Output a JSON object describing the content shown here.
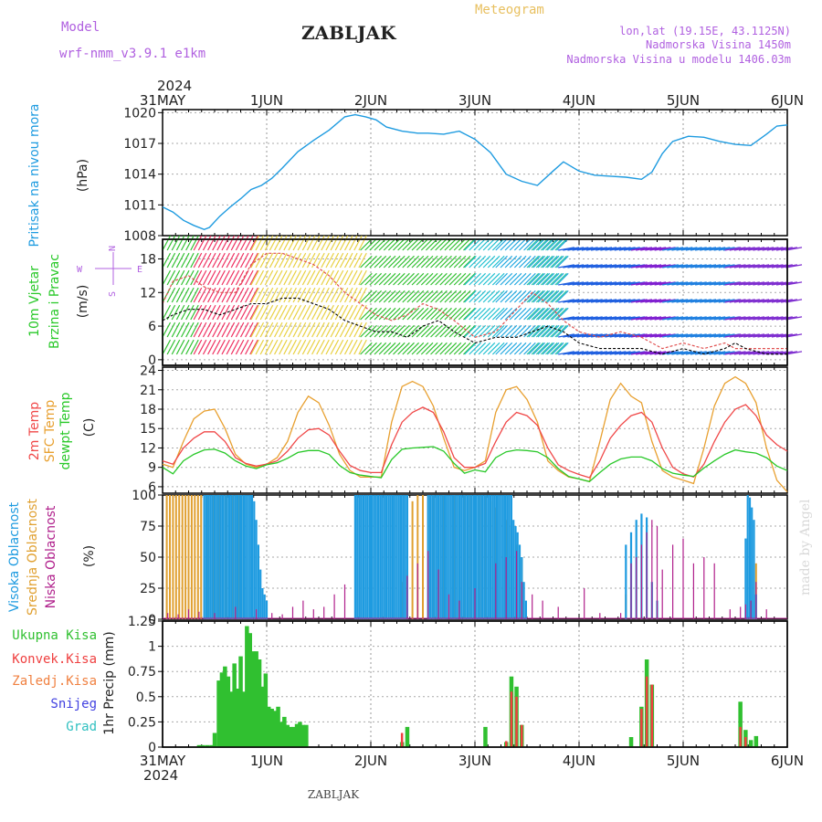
{
  "header": {
    "model_label": "Model",
    "model_name": "wrf-nmm_v3.9.1  e1km",
    "station": "ZABLJAK",
    "meteogram": "Meteogram",
    "lonlat": "lon,lat (19.15E, 43.1125N)",
    "altitude": "Nadmorska Visina 1450m",
    "model_altitude": "Nadmorska Visina u modelu 1406.03m",
    "credit": "made by Angel",
    "footer_station": "ZABLJAK"
  },
  "colors": {
    "pressure": "#1e9be0",
    "temp2m": "#f04848",
    "sfc": "#e8a030",
    "dewpt": "#28c828",
    "high_cloud": "#1e9be0",
    "mid_cloud": "#e0a030",
    "low_cloud": "#b0208c",
    "total_precip": "#30c030",
    "convective": "#ef4040",
    "frozen": "#f08040",
    "snow": "#4040e0",
    "graupel": "#30c0c0"
  },
  "time_axis": {
    "year": "2024",
    "labels": [
      "31MAY",
      "1JUN",
      "2JUN",
      "3JUN",
      "4JUN",
      "5JUN",
      "6JUN"
    ]
  },
  "chart_data": [
    {
      "type": "line",
      "panel": "pressure",
      "ylabel_title": "Pritisak na nivou mora",
      "ylabel_unit": "(hPa)",
      "yticks": [
        "1008",
        "1011",
        "1014",
        "1017",
        "1020"
      ],
      "ylim": [
        1008,
        1020.3
      ],
      "x_days": [
        0,
        0.1,
        0.2,
        0.3,
        0.4,
        0.45,
        0.55,
        0.65,
        0.75,
        0.85,
        0.95,
        1.05,
        1.15,
        1.3,
        1.45,
        1.6,
        1.75,
        1.85,
        1.95,
        2.05,
        2.15,
        2.3,
        2.45,
        2.55,
        2.7,
        2.85,
        3.0,
        3.15,
        3.3,
        3.45,
        3.6,
        3.75,
        3.85,
        4.0,
        4.15,
        4.3,
        4.45,
        4.6,
        4.7,
        4.8,
        4.9,
        5.05,
        5.2,
        5.35,
        5.5,
        5.65,
        5.8,
        5.9,
        6.0
      ],
      "values": [
        1010.8,
        1010.3,
        1009.5,
        1009.0,
        1008.6,
        1008.8,
        1009.9,
        1010.8,
        1011.6,
        1012.5,
        1012.9,
        1013.6,
        1014.6,
        1016.2,
        1017.3,
        1018.3,
        1019.6,
        1019.8,
        1019.6,
        1019.3,
        1018.6,
        1018.2,
        1018.0,
        1018.0,
        1017.9,
        1018.2,
        1017.4,
        1016.1,
        1014.0,
        1013.3,
        1012.9,
        1014.3,
        1015.2,
        1014.3,
        1013.9,
        1013.8,
        1013.7,
        1013.5,
        1014.2,
        1016.0,
        1017.2,
        1017.7,
        1017.6,
        1017.2,
        1016.9,
        1016.8,
        1017.9,
        1018.7,
        1018.8
      ]
    },
    {
      "type": "line",
      "panel": "wind",
      "ylabel_title": "10m Vjetar",
      "ylabel_title2": "Brzina i Pravac",
      "ylabel_unit": "(m/s)",
      "compass_n": "N",
      "compass_s": "S",
      "compass_w": "W",
      "compass_e": "E",
      "yticks": [
        "0",
        "6",
        "12",
        "18"
      ],
      "ylim": [
        -1,
        21.5
      ],
      "x_days": [
        0,
        0.1,
        0.25,
        0.4,
        0.55,
        0.7,
        0.85,
        1.0,
        1.15,
        1.3,
        1.45,
        1.6,
        1.75,
        1.9,
        2.05,
        2.2,
        2.35,
        2.5,
        2.65,
        2.8,
        3.0,
        3.2,
        3.4,
        3.55,
        3.7,
        3.85,
        4.0,
        4.2,
        4.4,
        4.6,
        4.8,
        5.0,
        5.2,
        5.4,
        5.5,
        5.6,
        5.8,
        6.0
      ],
      "speed": [
        7,
        8,
        9,
        9,
        8,
        9,
        10,
        10,
        11,
        11,
        10,
        9,
        7,
        6,
        5,
        5,
        4,
        6,
        7,
        5,
        3,
        4,
        4,
        5,
        6,
        5,
        3,
        2,
        2,
        2,
        1,
        2,
        1,
        2,
        3,
        2,
        1,
        1
      ],
      "gust": [
        10,
        14,
        15,
        13,
        12,
        12,
        17,
        19,
        19,
        18,
        17,
        15,
        12,
        10,
        8,
        7,
        8,
        10,
        9,
        7,
        4,
        5,
        9,
        12,
        10,
        7,
        5,
        4,
        5,
        4,
        2,
        3,
        2,
        3,
        2,
        2,
        2,
        2
      ]
    },
    {
      "type": "line",
      "panel": "temperature",
      "ylabel_lines": [
        "2m Temp",
        "SFC Temp",
        "dewpt Temp"
      ],
      "ylabel_unit": "(C)",
      "yticks": [
        "6",
        "9",
        "12",
        "15",
        "18",
        "21",
        "24"
      ],
      "ylim": [
        5,
        24.5
      ],
      "x_days": [
        0,
        0.1,
        0.2,
        0.3,
        0.4,
        0.5,
        0.6,
        0.7,
        0.8,
        0.9,
        1.0,
        1.1,
        1.2,
        1.3,
        1.4,
        1.5,
        1.6,
        1.7,
        1.8,
        1.9,
        2.0,
        2.1,
        2.2,
        2.3,
        2.4,
        2.5,
        2.6,
        2.7,
        2.8,
        2.9,
        3.0,
        3.1,
        3.2,
        3.3,
        3.4,
        3.5,
        3.6,
        3.7,
        3.8,
        3.9,
        4.0,
        4.1,
        4.2,
        4.3,
        4.4,
        4.5,
        4.6,
        4.7,
        4.8,
        4.9,
        5.0,
        5.1,
        5.2,
        5.3,
        5.4,
        5.5,
        5.6,
        5.7,
        5.8,
        5.9,
        6.0
      ],
      "t2m": [
        10,
        9.5,
        12,
        13.5,
        14.5,
        14.5,
        13,
        10.5,
        9.6,
        9.2,
        9.5,
        10,
        11.5,
        13.5,
        14.8,
        15,
        14,
        11.5,
        9.3,
        8.5,
        8.2,
        8.2,
        12.5,
        16,
        17.5,
        18.3,
        17.5,
        14.5,
        10.5,
        9,
        9,
        9.6,
        13,
        16,
        17.5,
        17,
        15.5,
        12,
        9.4,
        8.5,
        7.9,
        7.4,
        10,
        13.5,
        15.5,
        17,
        17.5,
        16,
        12,
        9,
        8,
        7.5,
        9.5,
        13,
        16,
        18,
        18.7,
        17,
        14,
        12.5,
        11.5
      ],
      "sfc": [
        9.5,
        9,
        13,
        16.5,
        17.7,
        18,
        15,
        11,
        9.5,
        9,
        9.5,
        10.5,
        13,
        17.5,
        20,
        19,
        15.5,
        11,
        8.5,
        7.5,
        7.5,
        7.5,
        16,
        21.5,
        22.3,
        21.5,
        18.5,
        13.5,
        9,
        8.5,
        9,
        10,
        17.5,
        21,
        21.5,
        19.5,
        16,
        10,
        8.5,
        7.5,
        7.2,
        6.8,
        13,
        19.5,
        22,
        20,
        19,
        13,
        8.5,
        7.5,
        7,
        6.5,
        12,
        18.5,
        22,
        23,
        22,
        19,
        12,
        7,
        5.2
      ],
      "dewpt": [
        9,
        8,
        10,
        11,
        11.7,
        11.8,
        11.2,
        10,
        9.2,
        8.8,
        9.4,
        9.7,
        10.4,
        11.3,
        11.6,
        11.6,
        11,
        9.3,
        8.2,
        7.8,
        7.6,
        7.4,
        10.2,
        11.8,
        12,
        12.1,
        12.2,
        11.5,
        9.6,
        8.1,
        8.6,
        8.3,
        10.5,
        11.4,
        11.7,
        11.6,
        11.4,
        10.5,
        8.8,
        7.6,
        7.2,
        6.8,
        8.2,
        9.5,
        10.3,
        10.6,
        10.6,
        10,
        8.8,
        8.1,
        7.8,
        7.6,
        8.9,
        10,
        11,
        11.7,
        11.4,
        11.2,
        10.5,
        9.2,
        8.5
      ]
    },
    {
      "type": "bar",
      "panel": "clouds",
      "ylabel_lines": [
        "Visoka Oblacnost",
        "Srednja Oblacnost",
        "Niska Oblacnost"
      ],
      "ylabel_unit": "(%)",
      "yticks": [
        "0",
        "25",
        "50",
        "75",
        "100"
      ],
      "ylim": [
        0,
        100
      ],
      "series": [
        {
          "key": "mid",
          "color_key": "mid_cloud",
          "x_days": [
            0.04,
            0.07,
            0.1,
            0.13,
            0.16,
            0.19,
            0.22,
            0.25,
            0.28,
            0.31,
            0.34,
            0.37,
            0.4,
            0.43,
            0.46,
            0.49,
            0.52,
            0.55,
            0.58,
            0.61,
            0.64,
            0.67,
            0.7,
            0.73,
            0.76,
            2.3,
            2.35,
            2.4,
            2.45,
            2.5,
            2.55,
            2.6,
            2.65,
            2.7,
            2.75,
            2.8,
            2.85,
            2.9,
            2.95,
            3.0,
            3.05,
            3.1,
            3.15,
            3.2,
            3.25,
            3.3,
            3.35,
            3.4,
            3.45,
            4.45,
            4.5,
            5.7
          ],
          "values": [
            100,
            100,
            100,
            100,
            100,
            100,
            100,
            100,
            100,
            100,
            100,
            100,
            100,
            100,
            100,
            100,
            100,
            100,
            100,
            100,
            100,
            100,
            100,
            100,
            100,
            30,
            40,
            95,
            100,
            100,
            100,
            100,
            100,
            100,
            100,
            100,
            100,
            100,
            100,
            100,
            100,
            100,
            95,
            90,
            85,
            80,
            75,
            60,
            50,
            20,
            15,
            45
          ]
        },
        {
          "key": "high",
          "color_key": "high_cloud",
          "x_days": [
            0.4,
            0.42,
            0.44,
            0.46,
            0.48,
            0.5,
            0.52,
            0.54,
            0.56,
            0.58,
            0.6,
            0.62,
            0.64,
            0.66,
            0.68,
            0.7,
            0.72,
            0.74,
            0.76,
            0.78,
            0.8,
            0.82,
            0.84,
            0.86,
            0.88,
            0.9,
            0.92,
            0.94,
            0.96,
            0.98,
            1.0,
            1.85,
            1.87,
            1.89,
            1.91,
            1.93,
            1.95,
            1.97,
            1.99,
            2.01,
            2.03,
            2.05,
            2.07,
            2.09,
            2.11,
            2.13,
            2.15,
            2.17,
            2.19,
            2.21,
            2.23,
            2.25,
            2.27,
            2.29,
            2.31,
            2.33,
            2.35,
            2.55,
            2.57,
            2.59,
            2.61,
            2.63,
            2.65,
            2.67,
            2.69,
            2.71,
            2.73,
            2.75,
            2.77,
            2.79,
            2.81,
            2.83,
            2.85,
            2.87,
            2.89,
            2.91,
            2.93,
            2.95,
            2.97,
            2.99,
            3.01,
            3.03,
            3.05,
            3.07,
            3.09,
            3.11,
            3.13,
            3.15,
            3.17,
            3.19,
            3.21,
            3.23,
            3.25,
            3.27,
            3.29,
            3.31,
            3.33,
            3.35,
            3.37,
            3.39,
            3.41,
            3.43,
            3.45,
            3.47,
            3.49,
            4.45,
            4.5,
            4.55,
            4.6,
            4.65,
            4.7,
            4.75,
            5.6,
            5.62,
            5.64,
            5.66,
            5.68,
            5.7
          ],
          "values": [
            100,
            100,
            100,
            100,
            100,
            100,
            100,
            100,
            100,
            100,
            100,
            100,
            100,
            100,
            100,
            100,
            100,
            100,
            100,
            100,
            100,
            100,
            100,
            100,
            95,
            80,
            60,
            40,
            25,
            20,
            15,
            100,
            100,
            100,
            100,
            100,
            100,
            100,
            100,
            100,
            100,
            100,
            100,
            100,
            100,
            100,
            100,
            100,
            100,
            100,
            100,
            100,
            100,
            100,
            100,
            100,
            100,
            100,
            100,
            100,
            100,
            100,
            100,
            100,
            100,
            100,
            100,
            100,
            100,
            100,
            100,
            100,
            100,
            100,
            100,
            100,
            100,
            100,
            100,
            100,
            100,
            100,
            100,
            100,
            100,
            100,
            100,
            100,
            100,
            100,
            100,
            100,
            100,
            100,
            100,
            100,
            100,
            100,
            80,
            75,
            70,
            60,
            50,
            30,
            15,
            60,
            70,
            80,
            85,
            82,
            30,
            15,
            65,
            100,
            98,
            90,
            80,
            20
          ]
        },
        {
          "key": "low",
          "color_key": "low_cloud",
          "x_days": [
            0.05,
            0.15,
            0.25,
            0.35,
            0.5,
            0.7,
            0.9,
            1.05,
            1.15,
            1.25,
            1.35,
            1.45,
            1.55,
            1.65,
            1.75,
            2.35,
            2.45,
            2.55,
            2.65,
            2.75,
            2.85,
            3.0,
            3.2,
            3.3,
            3.4,
            3.45,
            3.55,
            3.65,
            3.8,
            4.05,
            4.2,
            4.4,
            4.5,
            4.55,
            4.6,
            4.65,
            4.7,
            4.75,
            4.8,
            4.9,
            5.0,
            5.1,
            5.2,
            5.3,
            5.45,
            5.55,
            5.6,
            5.65,
            5.7,
            5.8
          ],
          "values": [
            5,
            4,
            8,
            6,
            5,
            10,
            8,
            5,
            4,
            10,
            15,
            8,
            10,
            20,
            28,
            35,
            45,
            55,
            40,
            20,
            15,
            25,
            45,
            50,
            55,
            30,
            20,
            15,
            10,
            25,
            5,
            5,
            45,
            50,
            60,
            70,
            80,
            75,
            40,
            60,
            65,
            45,
            50,
            45,
            8,
            10,
            12,
            15,
            30,
            8
          ]
        }
      ]
    },
    {
      "type": "bar",
      "panel": "precipitation",
      "legend": [
        "Ukupna  Kisa",
        "Konvek.Kisa",
        "Zaledj.Kisa",
        "Snijeg",
        "Grad"
      ],
      "ylabel_unit": "1hr Precip (mm)",
      "yticks": [
        "0",
        "0.25",
        "0.5",
        "0.75",
        "1",
        "1.25"
      ],
      "ylim": [
        0,
        1.25
      ],
      "series": [
        {
          "key": "total",
          "color_key": "total_precip",
          "x_days": [
            0.35,
            0.39,
            0.43,
            0.47,
            0.5,
            0.54,
            0.57,
            0.6,
            0.63,
            0.66,
            0.69,
            0.72,
            0.75,
            0.78,
            0.81,
            0.84,
            0.87,
            0.9,
            0.93,
            0.96,
            0.99,
            1.02,
            1.05,
            1.08,
            1.11,
            1.14,
            1.17,
            1.2,
            1.23,
            1.26,
            1.29,
            1.32,
            1.35,
            1.38,
            2.3,
            2.35,
            3.1,
            3.3,
            3.35,
            3.4,
            3.45,
            4.5,
            4.6,
            4.65,
            4.7,
            5.55,
            5.6,
            5.65,
            5.7
          ],
          "values": [
            0.02,
            0.02,
            0.02,
            0.02,
            0.14,
            0.66,
            0.74,
            0.8,
            0.7,
            0.55,
            0.83,
            0.58,
            0.9,
            0.55,
            1.2,
            1.13,
            0.95,
            0.95,
            0.87,
            0.6,
            0.73,
            0.4,
            0.38,
            0.36,
            0.4,
            0.25,
            0.3,
            0.22,
            0.2,
            0.2,
            0.23,
            0.25,
            0.22,
            0.22,
            0.05,
            0.2,
            0.2,
            0.05,
            0.7,
            0.6,
            0.22,
            0.1,
            0.4,
            0.87,
            0.62,
            0.45,
            0.17,
            0.07,
            0.11
          ]
        },
        {
          "key": "convective",
          "color_key": "convective",
          "x_days": [
            2.3,
            3.3,
            3.35,
            3.4,
            3.45,
            4.6,
            4.65,
            4.7,
            5.55,
            5.6
          ],
          "values": [
            0.14,
            0.06,
            0.55,
            0.5,
            0.22,
            0.38,
            0.7,
            0.62,
            0.2,
            0.1
          ]
        }
      ]
    }
  ]
}
